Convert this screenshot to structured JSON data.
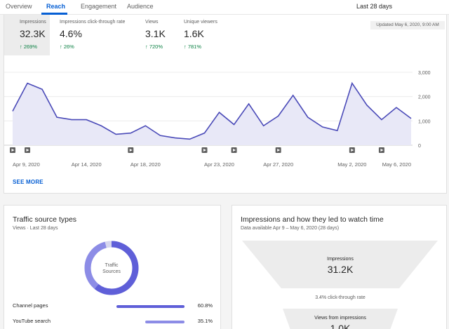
{
  "tabs": [
    {
      "label": "Overview",
      "active": false
    },
    {
      "label": "Reach",
      "active": true
    },
    {
      "label": "Engagement",
      "active": false
    },
    {
      "label": "Audience",
      "active": false
    }
  ],
  "date_range": "Last 28 days",
  "metrics": [
    {
      "label": "Impressions",
      "value": "32.3K",
      "delta": "269%",
      "selected": true
    },
    {
      "label": "Impressions click-through rate",
      "value": "4.6%",
      "delta": "26%",
      "selected": false
    },
    {
      "label": "Views",
      "value": "3.1K",
      "delta": "720%",
      "selected": false
    },
    {
      "label": "Unique viewers",
      "value": "1.6K",
      "delta": "781%",
      "selected": false
    }
  ],
  "updated": "Updated May 6, 2020, 9:00 AM",
  "see_more": "SEE MORE",
  "chart_data": {
    "type": "area",
    "series": [
      {
        "values": [
          1400,
          2550,
          2300,
          1150,
          1050,
          1050,
          800,
          450,
          500,
          800,
          400,
          300,
          250,
          500,
          1350,
          850,
          1700,
          800,
          1200,
          2050,
          1150,
          750,
          600,
          2550,
          1650,
          1050,
          1550,
          1100
        ]
      }
    ],
    "x_tick_labels": [
      "Apr 9, 2020",
      "Apr 14, 2020",
      "Apr 18, 2020",
      "Apr 23, 2020",
      "Apr 27, 2020",
      "May 2, 2020",
      "May 6, 2020"
    ],
    "x_tick_days": [
      0,
      5,
      9,
      14,
      18,
      23,
      27
    ],
    "y_ticks": [
      "0",
      "1,000",
      "2,000",
      "3,000"
    ],
    "ylim": [
      0,
      3000
    ],
    "video_marker_days": [
      0,
      1,
      8,
      13,
      15,
      18,
      23,
      25
    ],
    "grid": true
  },
  "traffic": {
    "title": "Traffic source types",
    "subtitle": "Views · Last 28 days",
    "donut_label_line1": "Traffic",
    "donut_label_line2": "Sources",
    "sources": [
      {
        "name": "Channel pages",
        "pct": "60.8%",
        "value": 60.8
      },
      {
        "name": "YouTube search",
        "pct": "35.1%",
        "value": 35.1
      }
    ]
  },
  "funnel": {
    "title": "Impressions and how they led to watch time",
    "subtitle": "Data available Apr 9 – May 6, 2020 (28 days)",
    "impressions_label": "Impressions",
    "impressions_value": "31.2K",
    "ctr_text": "3.4% click-through rate",
    "views_label": "Views from impressions",
    "views_value": "1.0K"
  },
  "colors": {
    "accent": "#065fd4",
    "line": "#4a4ab8",
    "fill": "#e8e8f7",
    "positive": "#0b8043",
    "donut": "#5f5fd8"
  }
}
